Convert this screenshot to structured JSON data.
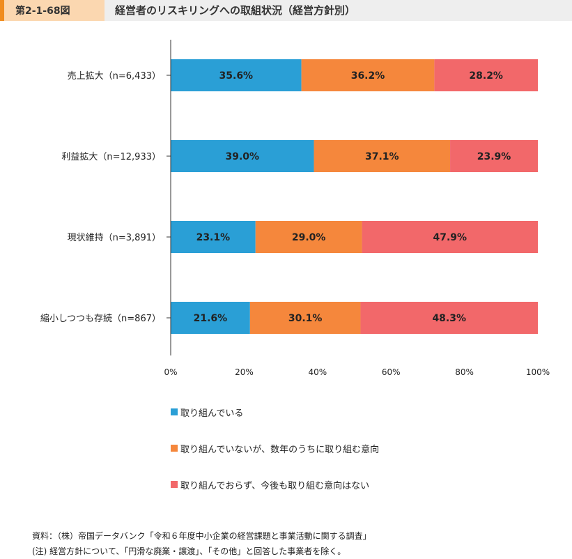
{
  "header": {
    "figure_number": "第2-1-68図",
    "title": "経営者のリスキリングへの取組状況（経営方針別）"
  },
  "colors": {
    "series": [
      "#2a9fd6",
      "#f5873c",
      "#f2686a"
    ],
    "header_accent": "#f08c1e",
    "header_fig_bg": "#fbd7b0"
  },
  "chart_data": {
    "type": "bar",
    "orientation": "horizontal",
    "stacked": true,
    "categories": [
      "売上拡大（n=6,433）",
      "利益拡大（n=12,933）",
      "現状維持（n=3,891）",
      "縮小しつつも存続（n=867）"
    ],
    "series": [
      {
        "name": "取り組んでいる",
        "values": [
          35.6,
          39.0,
          23.1,
          21.6
        ],
        "labels": [
          "35.6%",
          "39.0%",
          "23.1%",
          "21.6%"
        ]
      },
      {
        "name": "取り組んでいないが、数年のうちに取り組む意向",
        "values": [
          36.2,
          37.1,
          29.0,
          30.1
        ],
        "labels": [
          "36.2%",
          "37.1%",
          "29.0%",
          "30.1%"
        ]
      },
      {
        "name": "取り組んでおらず、今後も取り組む意向はない",
        "values": [
          28.2,
          23.9,
          47.9,
          48.3
        ],
        "labels": [
          "28.2%",
          "23.9%",
          "47.9%",
          "48.3%"
        ]
      }
    ],
    "xlim": [
      0,
      100
    ],
    "xticks": [
      "0%",
      "20%",
      "40%",
      "60%",
      "80%",
      "100%"
    ],
    "grid": false,
    "legend_position": "bottom"
  },
  "footer": {
    "source": "資料：（株）帝国データバンク「令和６年度中小企業の経営課題と事業活動に関する調査」",
    "note": "(注) 経営方針について、「円滑な廃業・譲渡」、「その他」と回答した事業者を除く。"
  }
}
